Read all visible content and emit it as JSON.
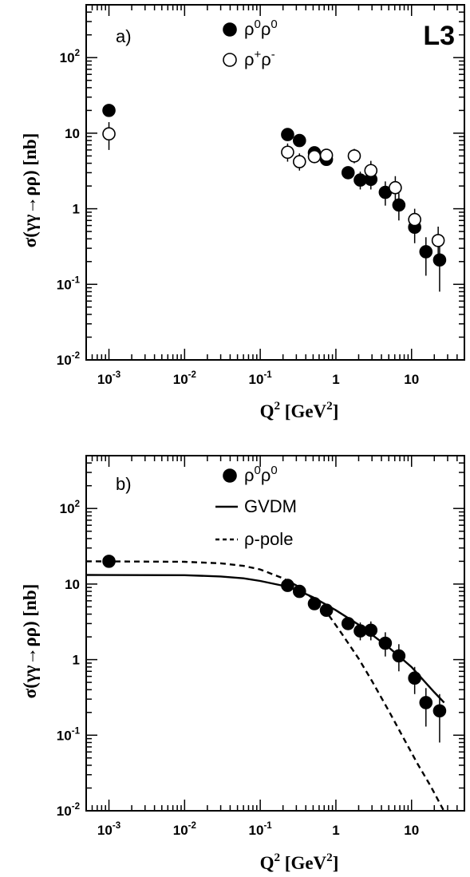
{
  "chart_data": [
    {
      "type": "scatter",
      "panel_label": "a)",
      "experiment": "L3",
      "xlabel": "Q",
      "xlabel_sup": "2",
      "xlabel_unit": "[GeV",
      "xlabel_unit_sup": "2",
      "xlabel_close": "]",
      "ylabel": "σ(γγ→ρρ) [nb]",
      "xscale": "log",
      "yscale": "log",
      "xlim": [
        0.0005,
        50
      ],
      "ylim": [
        0.01,
        500
      ],
      "x_ticks": [
        {
          "v": 0.001,
          "base": "10",
          "exp": "-3"
        },
        {
          "v": 0.01,
          "base": "10",
          "exp": "-2"
        },
        {
          "v": 0.1,
          "base": "10",
          "exp": "-1"
        },
        {
          "v": 1,
          "base": "1",
          "exp": ""
        },
        {
          "v": 10,
          "base": "10",
          "exp": ""
        }
      ],
      "y_ticks": [
        {
          "v": 0.01,
          "base": "10",
          "exp": "-2"
        },
        {
          "v": 0.1,
          "base": "10",
          "exp": "-1"
        },
        {
          "v": 1,
          "base": "1",
          "exp": ""
        },
        {
          "v": 10,
          "base": "10",
          "exp": ""
        },
        {
          "v": 100,
          "base": "10",
          "exp": "2"
        }
      ],
      "legend_position": "top-center",
      "series": [
        {
          "label_base": "ρ",
          "label_sup1": "0",
          "label_mid": "ρ",
          "label_sup2": "0",
          "marker": "filled-circle",
          "points": [
            {
              "x": 0.001,
              "y": 20,
              "lo": 20,
              "hi": 20
            },
            {
              "x": 0.23,
              "y": 9.6,
              "lo": 8.8,
              "hi": 10.4
            },
            {
              "x": 0.33,
              "y": 8.0,
              "lo": 7.2,
              "hi": 8.8
            },
            {
              "x": 0.52,
              "y": 5.5,
              "lo": 4.9,
              "hi": 6.1
            },
            {
              "x": 0.75,
              "y": 4.5,
              "lo": 4.0,
              "hi": 5.1
            },
            {
              "x": 1.45,
              "y": 3.0,
              "lo": 2.5,
              "hi": 3.6
            },
            {
              "x": 2.1,
              "y": 2.4,
              "lo": 1.8,
              "hi": 3.1
            },
            {
              "x": 2.9,
              "y": 2.45,
              "lo": 1.8,
              "hi": 3.2
            },
            {
              "x": 4.5,
              "y": 1.65,
              "lo": 1.1,
              "hi": 2.3
            },
            {
              "x": 6.8,
              "y": 1.12,
              "lo": 0.7,
              "hi": 1.6
            },
            {
              "x": 11,
              "y": 0.57,
              "lo": 0.35,
              "hi": 0.8
            },
            {
              "x": 15.5,
              "y": 0.27,
              "lo": 0.13,
              "hi": 0.42
            },
            {
              "x": 23.5,
              "y": 0.21,
              "lo": 0.08,
              "hi": 0.35
            }
          ]
        },
        {
          "label_base": "ρ",
          "label_sup1": "+",
          "label_mid": "ρ",
          "label_sup2": "-",
          "marker": "open-circle",
          "points": [
            {
              "x": 0.001,
              "y": 9.8,
              "lo": 6.0,
              "hi": 14
            },
            {
              "x": 0.23,
              "y": 5.6,
              "lo": 4.2,
              "hi": 7.3
            },
            {
              "x": 0.33,
              "y": 4.2,
              "lo": 3.2,
              "hi": 5.4
            },
            {
              "x": 0.52,
              "y": 4.9,
              "lo": 4.0,
              "hi": 5.9
            },
            {
              "x": 0.75,
              "y": 5.1,
              "lo": 4.3,
              "hi": 6.0
            },
            {
              "x": 1.75,
              "y": 5.0,
              "lo": 4.0,
              "hi": 6.2
            },
            {
              "x": 2.9,
              "y": 3.2,
              "lo": 2.3,
              "hi": 4.3
            },
            {
              "x": 6.1,
              "y": 1.9,
              "lo": 1.3,
              "hi": 2.7
            },
            {
              "x": 11,
              "y": 0.72,
              "lo": 0.5,
              "hi": 1.0
            },
            {
              "x": 22.5,
              "y": 0.38,
              "lo": 0.22,
              "hi": 0.58
            }
          ]
        }
      ]
    },
    {
      "type": "scatter",
      "panel_label": "b)",
      "xlabel": "Q",
      "xlabel_sup": "2",
      "xlabel_unit": "[GeV",
      "xlabel_unit_sup": "2",
      "xlabel_close": "]",
      "ylabel": "σ(γγ→ρρ) [nb]",
      "xscale": "log",
      "yscale": "log",
      "xlim": [
        0.0005,
        50
      ],
      "ylim": [
        0.01,
        500
      ],
      "x_ticks": [
        {
          "v": 0.001,
          "base": "10",
          "exp": "-3"
        },
        {
          "v": 0.01,
          "base": "10",
          "exp": "-2"
        },
        {
          "v": 0.1,
          "base": "10",
          "exp": "-1"
        },
        {
          "v": 1,
          "base": "1",
          "exp": ""
        },
        {
          "v": 10,
          "base": "10",
          "exp": ""
        }
      ],
      "y_ticks": [
        {
          "v": 0.01,
          "base": "10",
          "exp": "-2"
        },
        {
          "v": 0.1,
          "base": "10",
          "exp": "-1"
        },
        {
          "v": 1,
          "base": "1",
          "exp": ""
        },
        {
          "v": 10,
          "base": "10",
          "exp": ""
        },
        {
          "v": 100,
          "base": "10",
          "exp": "2"
        }
      ],
      "legend_position": "top-center",
      "series": [
        {
          "label_base": "ρ",
          "label_sup1": "0",
          "label_mid": "ρ",
          "label_sup2": "0",
          "marker": "filled-circle",
          "points": [
            {
              "x": 0.001,
              "y": 20,
              "lo": 20,
              "hi": 20
            },
            {
              "x": 0.23,
              "y": 9.6,
              "lo": 8.8,
              "hi": 10.4
            },
            {
              "x": 0.33,
              "y": 8.0,
              "lo": 7.2,
              "hi": 8.8
            },
            {
              "x": 0.52,
              "y": 5.5,
              "lo": 4.9,
              "hi": 6.1
            },
            {
              "x": 0.75,
              "y": 4.5,
              "lo": 4.0,
              "hi": 5.1
            },
            {
              "x": 1.45,
              "y": 3.0,
              "lo": 2.5,
              "hi": 3.6
            },
            {
              "x": 2.1,
              "y": 2.4,
              "lo": 1.8,
              "hi": 3.1
            },
            {
              "x": 2.9,
              "y": 2.45,
              "lo": 1.8,
              "hi": 3.2
            },
            {
              "x": 4.5,
              "y": 1.65,
              "lo": 1.1,
              "hi": 2.3
            },
            {
              "x": 6.8,
              "y": 1.12,
              "lo": 0.7,
              "hi": 1.6
            },
            {
              "x": 11,
              "y": 0.57,
              "lo": 0.35,
              "hi": 0.8
            },
            {
              "x": 15.5,
              "y": 0.27,
              "lo": 0.13,
              "hi": 0.42
            },
            {
              "x": 23.5,
              "y": 0.21,
              "lo": 0.08,
              "hi": 0.35
            }
          ]
        }
      ],
      "curves": [
        {
          "name": "GVDM",
          "style": "solid",
          "points": [
            [
              0.0005,
              13.2
            ],
            [
              0.01,
              13.1
            ],
            [
              0.03,
              12.6
            ],
            [
              0.06,
              11.9
            ],
            [
              0.1,
              11.0
            ],
            [
              0.2,
              9.5
            ],
            [
              0.3,
              8.4
            ],
            [
              0.5,
              6.7
            ],
            [
              1,
              4.5
            ],
            [
              2,
              2.9
            ],
            [
              5,
              1.45
            ],
            [
              10,
              0.8
            ],
            [
              20,
              0.37
            ],
            [
              27,
              0.27
            ]
          ]
        },
        {
          "name": "ρ-pole",
          "style": "dashed",
          "points": [
            [
              0.0005,
              20
            ],
            [
              0.01,
              19.7
            ],
            [
              0.03,
              18.8
            ],
            [
              0.06,
              17.4
            ],
            [
              0.1,
              15.6
            ],
            [
              0.2,
              11.9
            ],
            [
              0.3,
              9.6
            ],
            [
              0.5,
              6.4
            ],
            [
              0.8,
              3.9
            ],
            [
              1.2,
              2.2
            ],
            [
              2,
              1.03
            ],
            [
              3,
              0.52
            ],
            [
              5,
              0.21
            ],
            [
              8,
              0.088
            ],
            [
              12,
              0.042
            ],
            [
              18,
              0.021
            ],
            [
              27,
              0.0098
            ]
          ]
        }
      ]
    }
  ]
}
